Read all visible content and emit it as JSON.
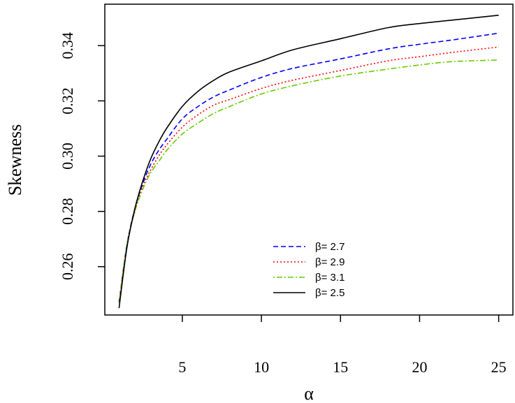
{
  "chart_data": {
    "type": "line",
    "xlabel": "α",
    "ylabel": "Skewness",
    "xlim": [
      0.1,
      25.9
    ],
    "ylim": [
      0.2425,
      0.355
    ],
    "xticks": [
      5,
      10,
      15,
      20,
      25
    ],
    "xtick_labels": [
      "5",
      "10",
      "15",
      "20",
      "25"
    ],
    "yticks": [
      0.26,
      0.28,
      0.3,
      0.32,
      0.34
    ],
    "ytick_labels": [
      "0.26",
      "0.28",
      "0.30",
      "0.32",
      "0.34"
    ],
    "grid": false,
    "legend_position": "bottom-center",
    "series": [
      {
        "name": "β= 2.7",
        "color": "#0000ff",
        "dash": "dashed",
        "x": [
          1,
          1.5,
          2,
          2.5,
          3,
          3.5,
          4,
          5,
          6,
          7,
          8,
          10,
          12,
          15,
          18,
          20,
          22,
          25
        ],
        "y": [
          0.247,
          0.268,
          0.281,
          0.29,
          0.297,
          0.302,
          0.306,
          0.3135,
          0.318,
          0.3215,
          0.324,
          0.3285,
          0.3318,
          0.3352,
          0.3388,
          0.3405,
          0.342,
          0.3445
        ]
      },
      {
        "name": "β= 2.9",
        "color": "#ff0000",
        "dash": "dotted",
        "x": [
          1,
          1.5,
          2,
          2.5,
          3,
          3.5,
          4,
          5,
          6,
          7,
          8,
          10,
          12,
          15,
          18,
          20,
          22,
          25
        ],
        "y": [
          0.247,
          0.268,
          0.28,
          0.289,
          0.295,
          0.3,
          0.304,
          0.3105,
          0.315,
          0.3185,
          0.3205,
          0.3245,
          0.3275,
          0.331,
          0.3345,
          0.336,
          0.3375,
          0.3395
        ]
      },
      {
        "name": "β= 3.1",
        "color": "#66cc00",
        "dash": "dashdot",
        "x": [
          1,
          1.5,
          2,
          2.5,
          3,
          3.5,
          4,
          5,
          6,
          7,
          8,
          10,
          12,
          15,
          18,
          20,
          22,
          25
        ],
        "y": [
          0.247,
          0.268,
          0.28,
          0.288,
          0.294,
          0.298,
          0.302,
          0.308,
          0.312,
          0.3155,
          0.318,
          0.3225,
          0.3255,
          0.329,
          0.3315,
          0.333,
          0.3342,
          0.3348
        ]
      },
      {
        "name": "β= 2.5",
        "color": "#000000",
        "dash": "solid",
        "x": [
          1,
          1.5,
          2,
          2.5,
          3,
          3.5,
          4,
          5,
          6,
          7,
          8,
          10,
          12,
          15,
          18,
          20,
          22,
          25
        ],
        "y": [
          0.245,
          0.267,
          0.281,
          0.291,
          0.299,
          0.305,
          0.31,
          0.318,
          0.3235,
          0.3275,
          0.3305,
          0.3345,
          0.3385,
          0.3425,
          0.3465,
          0.348,
          0.3492,
          0.351
        ]
      }
    ]
  }
}
